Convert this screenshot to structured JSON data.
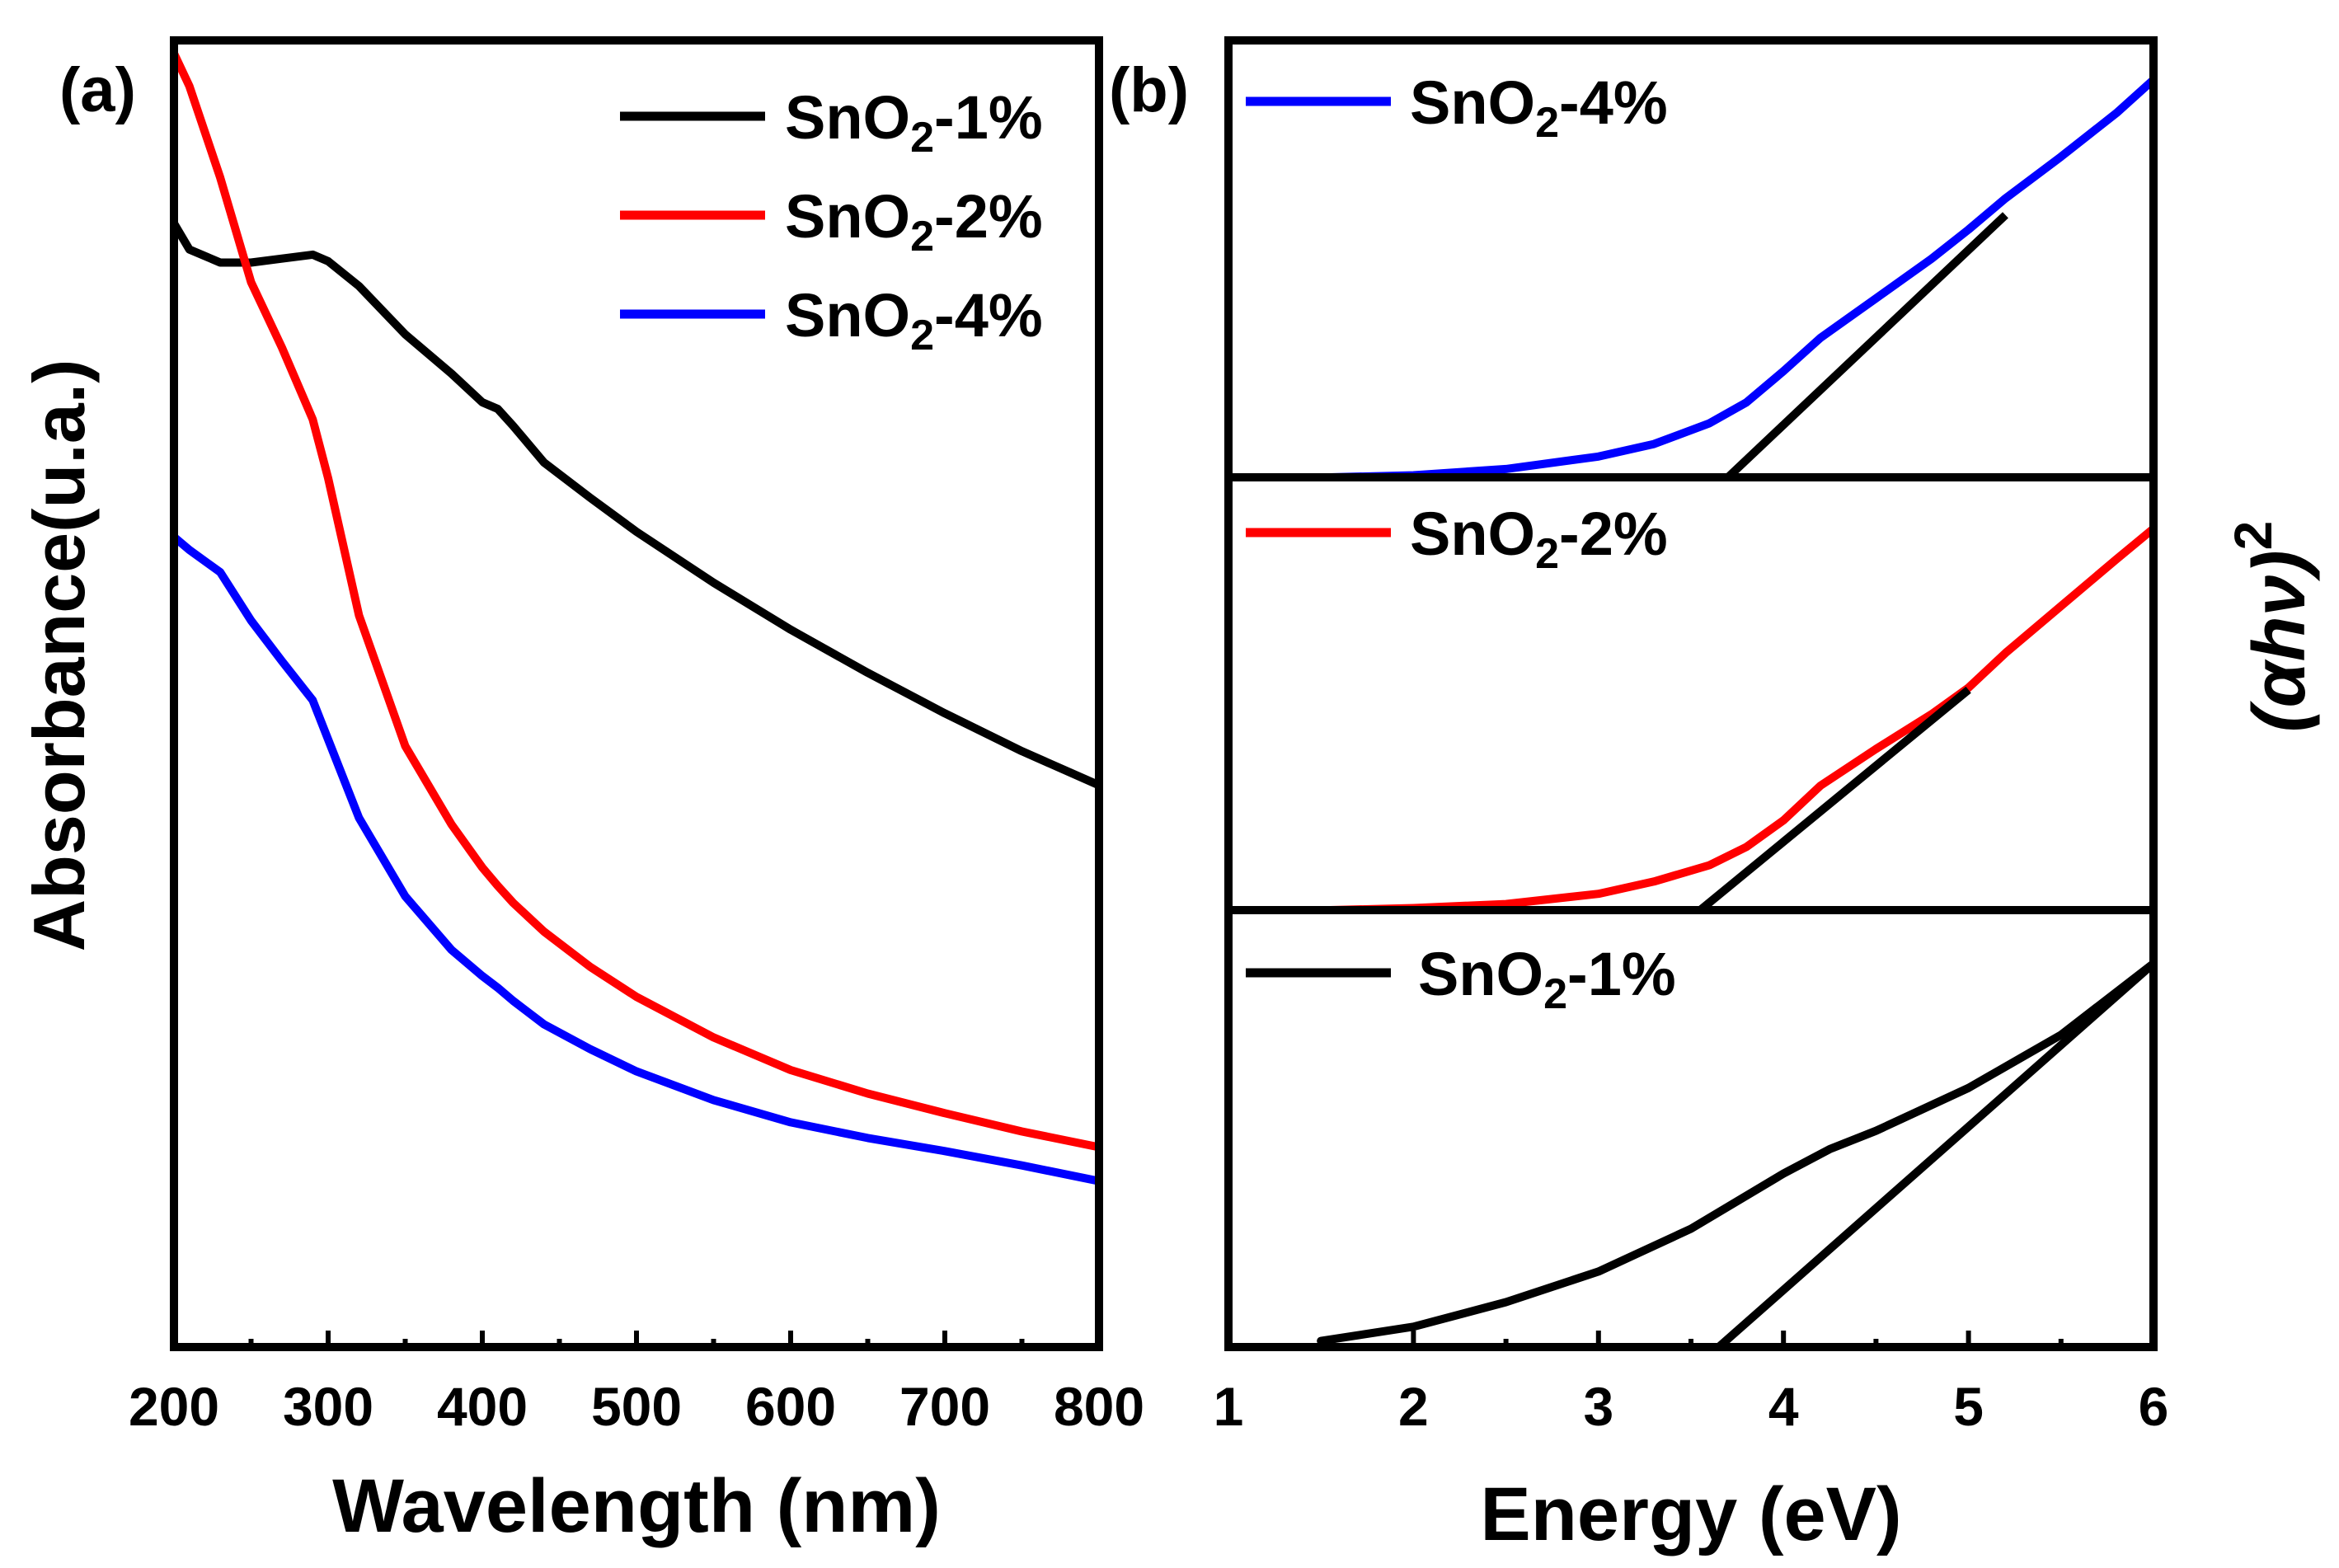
{
  "chart_data": [
    {
      "type": "line",
      "panel_label": "(a)",
      "xlabel": "Wavelength (nm)",
      "ylabel": "Absorbance(u.a.)",
      "xlim": [
        200,
        800
      ],
      "ylim": [
        0,
        100
      ],
      "xticks": [
        "200",
        "300",
        "400",
        "500",
        "600",
        "700",
        "800"
      ],
      "x": [
        200,
        210,
        230,
        250,
        270,
        290,
        300,
        320,
        350,
        380,
        400,
        410,
        420,
        440,
        470,
        500,
        550,
        600,
        650,
        700,
        750,
        800
      ],
      "series": [
        {
          "name": "SnO2-1%",
          "legend_base": "SnO",
          "legend_sub": "2",
          "legend_suffix": "-1%",
          "color": "#000000",
          "values": [
            86,
            84,
            83,
            83,
            83.3,
            83.6,
            83.1,
            81.2,
            77.5,
            74.5,
            72.3,
            71.8,
            70.5,
            67.7,
            65,
            62.4,
            58.5,
            54.9,
            51.6,
            48.5,
            45.6,
            43
          ]
        },
        {
          "name": "SnO2-2%",
          "legend_base": "SnO",
          "legend_sub": "2",
          "legend_suffix": "-2%",
          "color": "#ff0000",
          "values": [
            99,
            96.5,
            89.5,
            81.5,
            76.5,
            71,
            66.5,
            56,
            46,
            40,
            36.7,
            35.3,
            34,
            31.8,
            29.1,
            26.8,
            23.7,
            21.2,
            19.4,
            17.9,
            16.5,
            15.3
          ]
        },
        {
          "name": "SnO2-4%",
          "legend_base": "SnO",
          "legend_sub": "2",
          "legend_suffix": "-4%",
          "color": "#0000ff",
          "values": [
            62,
            61,
            59.3,
            55.6,
            52.5,
            49.5,
            46.5,
            40.5,
            34.5,
            30.4,
            28.4,
            27.5,
            26.5,
            24.7,
            22.8,
            21.1,
            18.9,
            17.2,
            16,
            15,
            13.9,
            12.7
          ]
        }
      ]
    },
    {
      "type": "line",
      "panel_label": "(b)",
      "xlabel": "Energy (eV)",
      "ylabel_base": "(αhν)",
      "ylabel_sup": "2",
      "xlim": [
        1,
        6
      ],
      "xticks": [
        "1",
        "2",
        "3",
        "4",
        "5",
        "6"
      ],
      "stacked_panels": [
        {
          "name": "SnO2-4%",
          "legend_base": "SnO",
          "legend_sub": "2",
          "legend_suffix": "-4%",
          "color": "#0000ff",
          "ylim": [
            0,
            100
          ],
          "x": [
            1.55,
            2.0,
            2.5,
            3.0,
            3.3,
            3.6,
            3.8,
            4.0,
            4.2,
            4.5,
            4.8,
            5.0,
            5.2,
            5.5,
            5.8,
            6.0
          ],
          "y": [
            0,
            0.5,
            2,
            5,
            8,
            13,
            18,
            25.5,
            33.5,
            43,
            52.5,
            59.5,
            67,
            77,
            87.5,
            95.5
          ],
          "tangent": {
            "x": [
              3.7,
              5.2
            ],
            "y": [
              0,
              63
            ]
          },
          "band_gap_eV": 3.7
        },
        {
          "name": "SnO2-2%",
          "legend_base": "SnO",
          "legend_sub": "2",
          "legend_suffix": "-2%",
          "color": "#ff0000",
          "ylim": [
            0,
            100
          ],
          "x": [
            1.55,
            2.0,
            2.5,
            3.0,
            3.3,
            3.6,
            3.8,
            4.0,
            4.2,
            4.5,
            4.8,
            5.0,
            5.2,
            5.5,
            5.8,
            6.0
          ],
          "y": [
            0,
            0.5,
            1.5,
            4,
            7,
            11,
            15.5,
            22,
            30.5,
            39.5,
            48,
            54.5,
            63,
            74.5,
            86,
            93.5
          ],
          "tangent": {
            "x": [
              3.55,
              5.0
            ],
            "y": [
              0,
              54
            ]
          },
          "band_gap_eV": 3.55
        },
        {
          "name": "SnO2-1%",
          "legend_base": "SnO",
          "legend_sub": "2",
          "legend_suffix": "-1%",
          "color": "#000000",
          "ylim": [
            0,
            100
          ],
          "x": [
            1.5,
            2.0,
            2.5,
            3.0,
            3.5,
            4.0,
            4.25,
            4.5,
            5.0,
            5.5,
            6.0
          ],
          "y": [
            1.5,
            5,
            11,
            18.5,
            29,
            42.5,
            48.5,
            53,
            63.5,
            76.5,
            94
          ],
          "tangent": {
            "x": [
              3.65,
              6.0
            ],
            "y": [
              0,
              94
            ]
          },
          "band_gap_eV": 3.65
        }
      ]
    }
  ]
}
